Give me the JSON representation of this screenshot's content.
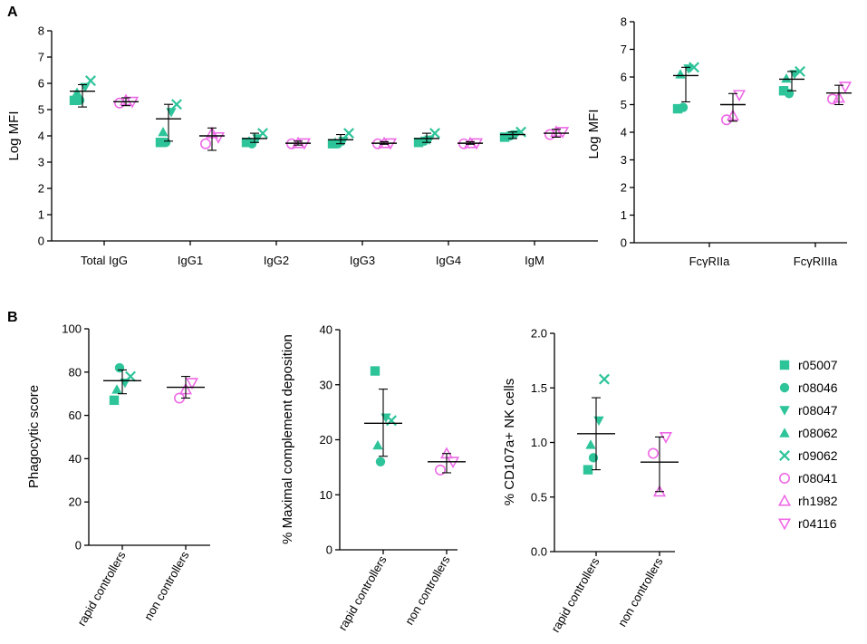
{
  "panels": {
    "a": "A",
    "b": "B"
  },
  "colors": {
    "rapid": "#2ec49a",
    "non": "#ee6ae6",
    "axis": "#000000"
  },
  "legend": [
    {
      "label": "r05007",
      "shape": "square",
      "group": "rapid"
    },
    {
      "label": "r08046",
      "shape": "circle",
      "group": "rapid"
    },
    {
      "label": "r08047",
      "shape": "triangle-down",
      "group": "rapid"
    },
    {
      "label": "r08062",
      "shape": "triangle-up",
      "group": "rapid"
    },
    {
      "label": "r09062",
      "shape": "cross",
      "group": "rapid"
    },
    {
      "label": "r08041",
      "shape": "circle-open",
      "group": "non"
    },
    {
      "label": "rh1982",
      "shape": "triangle-up-open",
      "group": "non"
    },
    {
      "label": "r04116",
      "shape": "triangle-down-open",
      "group": "non"
    }
  ],
  "chart_data": [
    {
      "id": "A-left",
      "type": "scatter",
      "ylabel": "Log MFI",
      "ylim": [
        0,
        8
      ],
      "yticks": [
        0,
        1,
        2,
        3,
        4,
        5,
        6,
        7,
        8
      ],
      "categories": [
        "Total IgG",
        "IgG1",
        "IgG2",
        "IgG3",
        "IgG4",
        "IgM"
      ],
      "groups": [
        {
          "cat": 0,
          "side": "rapid",
          "mean": 5.7,
          "err": [
            5.1,
            5.95
          ],
          "points": [
            [
              "square",
              5.35
            ],
            [
              "circle",
              5.35
            ],
            [
              "triangle-down",
              5.85
            ],
            [
              "triangle-up",
              5.65
            ],
            [
              "cross",
              6.1
            ]
          ]
        },
        {
          "cat": 0,
          "side": "non",
          "mean": 5.3,
          "err": [
            5.15,
            5.45
          ],
          "points": [
            [
              "circle-open",
              5.25
            ],
            [
              "triangle-up-open",
              5.35
            ],
            [
              "triangle-down-open",
              5.3
            ]
          ]
        },
        {
          "cat": 1,
          "side": "rapid",
          "mean": 4.65,
          "err": [
            3.8,
            5.2
          ],
          "points": [
            [
              "square",
              3.75
            ],
            [
              "circle",
              3.75
            ],
            [
              "triangle-down",
              4.9
            ],
            [
              "triangle-up",
              4.15
            ],
            [
              "cross",
              5.2
            ]
          ]
        },
        {
          "cat": 1,
          "side": "non",
          "mean": 4.0,
          "err": [
            3.45,
            4.3
          ],
          "points": [
            [
              "circle-open",
              3.7
            ],
            [
              "triangle-up-open",
              4.1
            ],
            [
              "triangle-down-open",
              3.95
            ]
          ]
        },
        {
          "cat": 2,
          "side": "rapid",
          "mean": 3.9,
          "err": [
            3.75,
            4.1
          ],
          "points": [
            [
              "square",
              3.75
            ],
            [
              "circle",
              3.7
            ],
            [
              "triangle-down",
              3.9
            ],
            [
              "triangle-up",
              3.8
            ],
            [
              "cross",
              4.1
            ]
          ]
        },
        {
          "cat": 2,
          "side": "non",
          "mean": 3.72,
          "err": [
            3.65,
            3.8
          ],
          "points": [
            [
              "circle-open",
              3.7
            ],
            [
              "triangle-up-open",
              3.72
            ],
            [
              "triangle-down-open",
              3.72
            ]
          ]
        },
        {
          "cat": 3,
          "side": "rapid",
          "mean": 3.85,
          "err": [
            3.7,
            4.05
          ],
          "points": [
            [
              "square",
              3.7
            ],
            [
              "circle",
              3.7
            ],
            [
              "triangle-down",
              3.8
            ],
            [
              "triangle-up",
              3.75
            ],
            [
              "cross",
              4.1
            ]
          ]
        },
        {
          "cat": 3,
          "side": "non",
          "mean": 3.72,
          "err": [
            3.68,
            3.78
          ],
          "points": [
            [
              "circle-open",
              3.7
            ],
            [
              "triangle-up-open",
              3.72
            ],
            [
              "triangle-down-open",
              3.72
            ]
          ]
        },
        {
          "cat": 4,
          "side": "rapid",
          "mean": 3.9,
          "err": [
            3.75,
            4.1
          ],
          "points": [
            [
              "square",
              3.75
            ],
            [
              "circle",
              3.8
            ],
            [
              "triangle-down",
              3.85
            ],
            [
              "triangle-up",
              3.8
            ],
            [
              "cross",
              4.1
            ]
          ]
        },
        {
          "cat": 4,
          "side": "non",
          "mean": 3.72,
          "err": [
            3.68,
            3.78
          ],
          "points": [
            [
              "circle-open",
              3.7
            ],
            [
              "triangle-up-open",
              3.72
            ],
            [
              "triangle-down-open",
              3.72
            ]
          ]
        },
        {
          "cat": 5,
          "side": "rapid",
          "mean": 4.05,
          "err": [
            3.9,
            4.15
          ],
          "points": [
            [
              "square",
              3.95
            ],
            [
              "circle",
              4.0
            ],
            [
              "triangle-down",
              4.05
            ],
            [
              "triangle-up",
              4.0
            ],
            [
              "cross",
              4.15
            ]
          ]
        },
        {
          "cat": 5,
          "side": "non",
          "mean": 4.1,
          "err": [
            3.95,
            4.25
          ],
          "points": [
            [
              "circle-open",
              4.05
            ],
            [
              "triangle-up-open",
              4.15
            ],
            [
              "triangle-down-open",
              4.15
            ]
          ]
        }
      ]
    },
    {
      "id": "A-right",
      "type": "scatter",
      "ylabel": "Log MFI",
      "ylim": [
        0,
        8
      ],
      "yticks": [
        0,
        1,
        2,
        3,
        4,
        5,
        6,
        7,
        8
      ],
      "categories": [
        "FcγRIIa",
        "FcγRIIIa"
      ],
      "groups": [
        {
          "cat": 0,
          "side": "rapid",
          "mean": 6.05,
          "err": [
            5.1,
            6.35
          ],
          "points": [
            [
              "square",
              4.85
            ],
            [
              "circle",
              4.9
            ],
            [
              "triangle-down",
              6.3
            ],
            [
              "triangle-up",
              6.1
            ],
            [
              "cross",
              6.35
            ]
          ]
        },
        {
          "cat": 0,
          "side": "non",
          "mean": 5.0,
          "err": [
            4.4,
            5.4
          ],
          "points": [
            [
              "circle-open",
              4.45
            ],
            [
              "triangle-up-open",
              4.6
            ],
            [
              "triangle-down-open",
              5.35
            ]
          ]
        },
        {
          "cat": 1,
          "side": "rapid",
          "mean": 5.92,
          "err": [
            5.5,
            6.2
          ],
          "points": [
            [
              "square",
              5.5
            ],
            [
              "circle",
              5.4
            ],
            [
              "triangle-down",
              6.1
            ],
            [
              "triangle-up",
              5.95
            ],
            [
              "cross",
              6.2
            ]
          ]
        },
        {
          "cat": 1,
          "side": "non",
          "mean": 5.42,
          "err": [
            5.0,
            5.7
          ],
          "points": [
            [
              "circle-open",
              5.2
            ],
            [
              "triangle-up-open",
              5.25
            ],
            [
              "triangle-down-open",
              5.65
            ]
          ]
        }
      ]
    },
    {
      "id": "B-phago",
      "type": "scatter",
      "ylabel": "Phagocytic score",
      "ylim": [
        0,
        100
      ],
      "yticks": [
        0,
        20,
        40,
        60,
        80,
        100
      ],
      "categories": [
        "rapid controllers",
        "non controllers"
      ],
      "groups": [
        {
          "cat": 0,
          "side": "center",
          "mean": 76,
          "err": [
            70,
            81
          ],
          "points": [
            [
              "square",
              67
            ],
            [
              "circle",
              82
            ],
            [
              "triangle-down",
              75
            ],
            [
              "triangle-up",
              72
            ],
            [
              "cross",
              78
            ]
          ]
        },
        {
          "cat": 1,
          "side": "center",
          "mean": 73,
          "err": [
            68,
            78
          ],
          "points": [
            [
              "circle-open",
              68
            ],
            [
              "triangle-up-open",
              72
            ],
            [
              "triangle-down-open",
              75
            ]
          ]
        }
      ]
    },
    {
      "id": "B-complement",
      "type": "scatter",
      "ylabel": "% Maximal complement deposition",
      "ylim": [
        0,
        40
      ],
      "yticks": [
        0,
        10,
        20,
        30,
        40
      ],
      "categories": [
        "rapid controllers",
        "non controllers"
      ],
      "groups": [
        {
          "cat": 0,
          "side": "center",
          "mean": 23,
          "err": [
            17,
            29.2
          ],
          "points": [
            [
              "square",
              32.5
            ],
            [
              "circle",
              16
            ],
            [
              "triangle-down",
              24
            ],
            [
              "triangle-up",
              19
            ],
            [
              "cross",
              23.5
            ]
          ]
        },
        {
          "cat": 1,
          "side": "center",
          "mean": 16,
          "err": [
            14,
            17.5
          ],
          "points": [
            [
              "circle-open",
              14.5
            ],
            [
              "triangle-up-open",
              17.5
            ],
            [
              "triangle-down-open",
              16
            ]
          ]
        }
      ]
    },
    {
      "id": "B-cd107a",
      "type": "scatter",
      "ylabel": "% CD107a+ NK cells",
      "ylim": [
        0,
        2.0
      ],
      "yticks": [
        "0.0",
        "0.5",
        "1.0",
        "1.5",
        "2.0"
      ],
      "categories": [
        "rapid controllers",
        "non controllers"
      ],
      "groups": [
        {
          "cat": 0,
          "side": "center",
          "mean": 1.08,
          "err": [
            0.75,
            1.41
          ],
          "points": [
            [
              "square",
              0.75
            ],
            [
              "circle",
              0.86
            ],
            [
              "triangle-down",
              1.2
            ],
            [
              "triangle-up",
              0.98
            ],
            [
              "cross",
              1.58
            ]
          ]
        },
        {
          "cat": 1,
          "side": "center",
          "mean": 0.82,
          "err": [
            0.55,
            1.05
          ],
          "points": [
            [
              "circle-open",
              0.9
            ],
            [
              "triangle-up-open",
              0.55
            ],
            [
              "triangle-down-open",
              1.05
            ]
          ]
        }
      ]
    }
  ]
}
